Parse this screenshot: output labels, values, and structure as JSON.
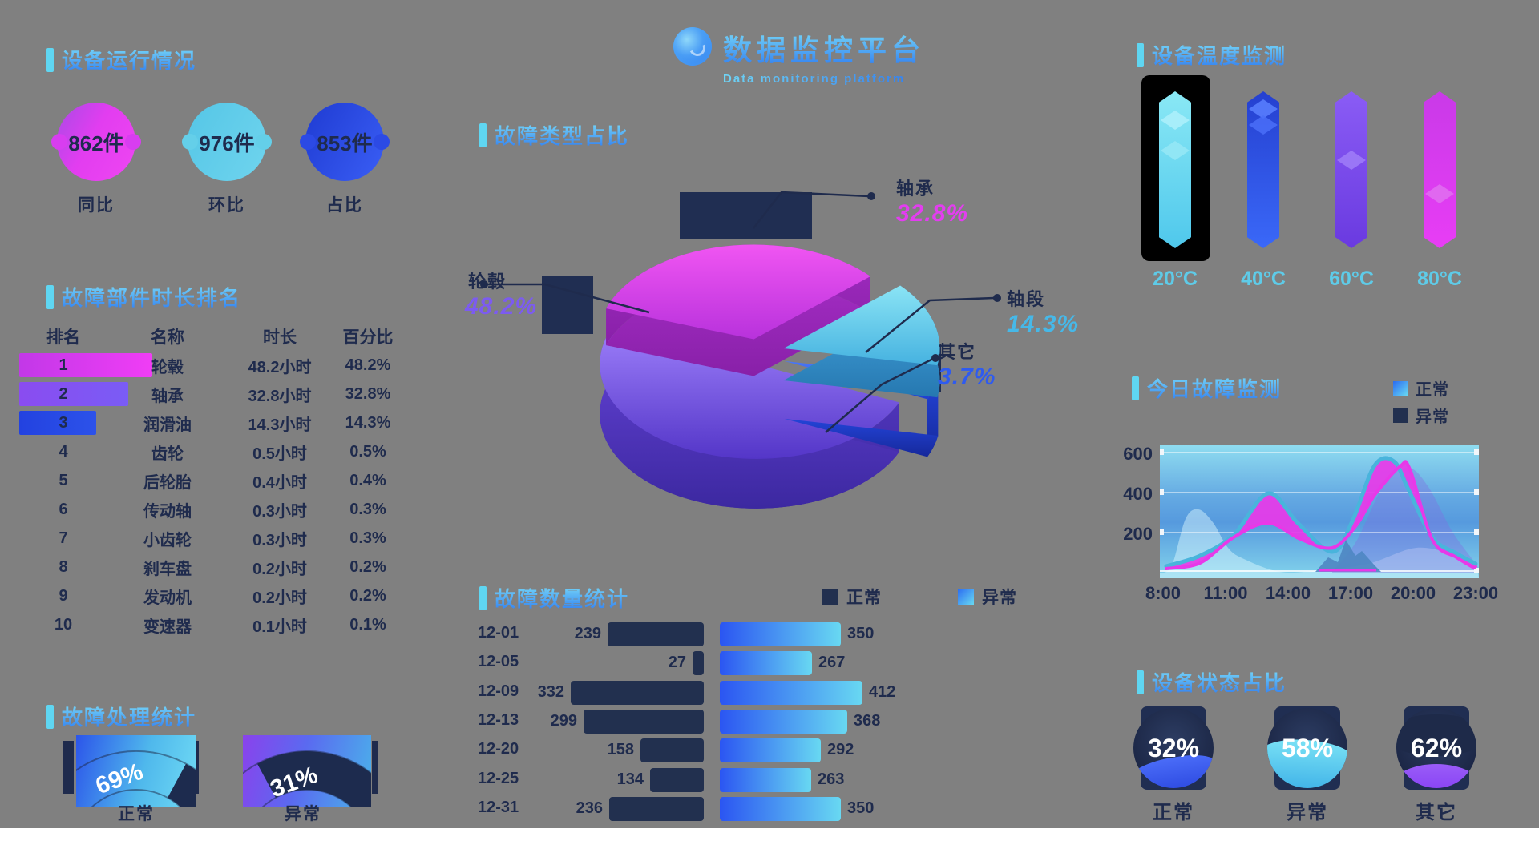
{
  "page": {
    "background": "#808080",
    "footer_color": "#ffffff"
  },
  "brand": {
    "logo_icon": "circle-logo-icon",
    "title": "数据监控平台",
    "subtitle": "Data monitoring platform"
  },
  "stats": {
    "title": "设备运行情况",
    "items": [
      {
        "value": "862件",
        "label": "同比",
        "color": "#e23df0"
      },
      {
        "value": "976件",
        "label": "环比",
        "color": "#64cfe9"
      },
      {
        "value": "853件",
        "label": "占比",
        "color": "#2c4ae5"
      }
    ]
  },
  "ranking": {
    "title": "故障部件时长排名",
    "columns": [
      "排名",
      "名称",
      "时长",
      "百分比"
    ],
    "rows": [
      {
        "rank": "1",
        "name": "轮毂",
        "duration": "48.2小时",
        "percent": "48.2%"
      },
      {
        "rank": "2",
        "name": "轴承",
        "duration": "32.8小时",
        "percent": "32.8%"
      },
      {
        "rank": "3",
        "name": "润滑油",
        "duration": "14.3小时",
        "percent": "14.3%"
      },
      {
        "rank": "4",
        "name": "齿轮",
        "duration": "0.5小时",
        "percent": "0.5%"
      },
      {
        "rank": "5",
        "name": "后轮胎",
        "duration": "0.4小时",
        "percent": "0.4%"
      },
      {
        "rank": "6",
        "name": "传动轴",
        "duration": "0.3小时",
        "percent": "0.3%"
      },
      {
        "rank": "7",
        "name": "小齿轮",
        "duration": "0.3小时",
        "percent": "0.3%"
      },
      {
        "rank": "8",
        "name": "刹车盘",
        "duration": "0.2小时",
        "percent": "0.2%"
      },
      {
        "rank": "9",
        "name": "发动机",
        "duration": "0.2小时",
        "percent": "0.2%"
      },
      {
        "rank": "10",
        "name": "变速器",
        "duration": "0.1小时",
        "percent": "0.1%"
      }
    ]
  },
  "gauges": {
    "title": "故障处理统计",
    "items": [
      {
        "value": 69,
        "display": "69%",
        "label": "正常"
      },
      {
        "value": 31,
        "display": "31%",
        "label": "异常"
      }
    ]
  },
  "pie": {
    "title": "故障类型占比",
    "slices": [
      {
        "name": "轴承",
        "percent": "32.8%",
        "value": 32.8,
        "color": "#e33df0"
      },
      {
        "name": "轴段",
        "percent": "14.3%",
        "value": 14.3,
        "color": "#46b8e8"
      },
      {
        "name": "其它",
        "percent": "3.7%",
        "value": 3.7,
        "color": "#2f5bef"
      },
      {
        "name": "轮毂",
        "percent": "48.2%",
        "value": 48.2,
        "color": "#7c5bf0"
      }
    ]
  },
  "tornado": {
    "title": "故障数量统计",
    "legend": [
      {
        "label": "正常"
      },
      {
        "label": "异常"
      }
    ],
    "categories": [
      "12-01",
      "12-05",
      "12-09",
      "12-13",
      "12-20",
      "12-25",
      "12-31"
    ],
    "left_values": [
      239,
      27,
      332,
      299,
      158,
      134,
      236
    ],
    "right_values": [
      350,
      267,
      412,
      368,
      292,
      263,
      350
    ]
  },
  "temperature": {
    "title": "设备温度监测",
    "items": [
      {
        "label": "20°C"
      },
      {
        "label": "40°C"
      },
      {
        "label": "60°C"
      },
      {
        "label": "80°C"
      }
    ]
  },
  "area": {
    "title": "今日故障监测",
    "legend": [
      {
        "label": "正常"
      },
      {
        "label": "异常"
      }
    ],
    "y_ticks": [
      "600",
      "400",
      "200"
    ],
    "x_ticks": [
      "8:00",
      "11:00",
      "14:00",
      "17:00",
      "20:00",
      "23:00"
    ]
  },
  "liquid": {
    "title": "设备状态占比",
    "items": [
      {
        "value": "32%",
        "label": "正常"
      },
      {
        "value": "58%",
        "label": "异常"
      },
      {
        "value": "62%",
        "label": "其它"
      }
    ]
  },
  "chart_data": [
    {
      "type": "pie",
      "title": "故障类型占比",
      "labels": [
        "轮毂",
        "轴承",
        "轴段",
        "其它"
      ],
      "values": [
        48.2,
        32.8,
        14.3,
        3.7
      ]
    },
    {
      "type": "bar",
      "title": "故障数量统计",
      "orientation": "tornado",
      "categories": [
        "12-01",
        "12-05",
        "12-09",
        "12-13",
        "12-20",
        "12-25",
        "12-31"
      ],
      "series": [
        {
          "name": "正常",
          "values": [
            239,
            27,
            332,
            299,
            158,
            134,
            236
          ]
        },
        {
          "name": "异常",
          "values": [
            350,
            267,
            412,
            368,
            292,
            263,
            350
          ]
        }
      ]
    },
    {
      "type": "area",
      "title": "今日故障监测",
      "x": [
        "8:00",
        "11:00",
        "14:00",
        "17:00",
        "20:00",
        "23:00"
      ],
      "ylim": [
        0,
        600
      ],
      "series": [
        {
          "name": "正常",
          "values": [
            30,
            200,
            420,
            120,
            560,
            60
          ]
        },
        {
          "name": "异常",
          "values": [
            20,
            170,
            280,
            150,
            530,
            50
          ]
        }
      ]
    },
    {
      "type": "pie",
      "title": "故障处理统计",
      "labels": [
        "正常",
        "异常"
      ],
      "values": [
        69,
        31
      ]
    },
    {
      "type": "bar",
      "title": "设备温度监测",
      "categories": [
        "20°C",
        "40°C",
        "60°C",
        "80°C"
      ],
      "values": [
        100,
        100,
        100,
        100
      ]
    },
    {
      "type": "pie",
      "title": "设备状态占比",
      "labels": [
        "正常",
        "异常",
        "其它"
      ],
      "values": [
        32,
        58,
        62
      ]
    },
    {
      "type": "table",
      "title": "故障部件时长排名",
      "columns": [
        "排名",
        "名称",
        "时长",
        "百分比"
      ],
      "rows": [
        [
          "1",
          "轮毂",
          "48.2小时",
          "48.2%"
        ],
        [
          "2",
          "轴承",
          "32.8小时",
          "32.8%"
        ],
        [
          "3",
          "润滑油",
          "14.3小时",
          "14.3%"
        ],
        [
          "4",
          "齿轮",
          "0.5小时",
          "0.5%"
        ],
        [
          "5",
          "后轮胎",
          "0.4小时",
          "0.4%"
        ],
        [
          "6",
          "传动轴",
          "0.3小时",
          "0.3%"
        ],
        [
          "7",
          "小齿轮",
          "0.3小时",
          "0.3%"
        ],
        [
          "8",
          "刹车盘",
          "0.2小时",
          "0.2%"
        ],
        [
          "9",
          "发动机",
          "0.2小时",
          "0.2%"
        ],
        [
          "10",
          "变速器",
          "0.1小时",
          "0.1%"
        ]
      ]
    }
  ]
}
